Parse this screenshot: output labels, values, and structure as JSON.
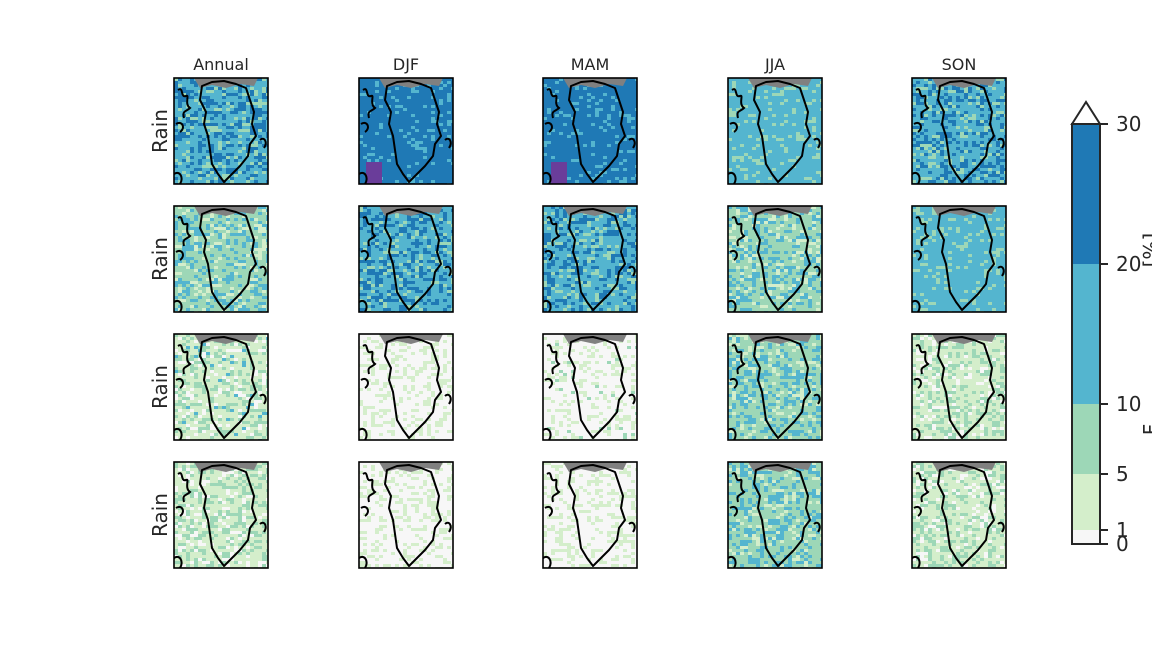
{
  "chart_data": {
    "type": "heatmap",
    "columns": [
      "Annual",
      "DJF",
      "MAM",
      "JJA",
      "SON"
    ],
    "row_labels": [
      "Rain",
      "Rain",
      "Rain",
      "Rain"
    ],
    "colorbar": {
      "boundaries": [
        0,
        1,
        5,
        10,
        20,
        30
      ],
      "tick_labels": [
        "0",
        "1",
        "5",
        "10",
        "20",
        "30"
      ],
      "colors": [
        "#f7f7f7",
        "#d4eecb",
        "#9dd7b7",
        "#54b5cf",
        "#1f79b5"
      ],
      "extend": "max",
      "extend_color": "#ffffff",
      "unit_label": "[%]",
      "quantity_label": "F"
    },
    "land_outside_domain_color": "#808080",
    "coastline_color": "#000000",
    "panel_levels": [
      [
        3,
        4,
        4,
        3,
        3
      ],
      [
        2,
        3,
        3,
        2,
        3
      ],
      [
        1,
        0,
        0,
        2,
        1
      ],
      [
        1,
        0,
        0,
        2,
        1
      ]
    ],
    "panel_max_levels": [
      [
        4,
        5,
        5,
        3,
        4
      ],
      [
        3,
        4,
        4,
        3,
        3
      ],
      [
        3,
        1,
        2,
        3,
        2
      ],
      [
        2,
        1,
        1,
        3,
        2
      ]
    ]
  }
}
